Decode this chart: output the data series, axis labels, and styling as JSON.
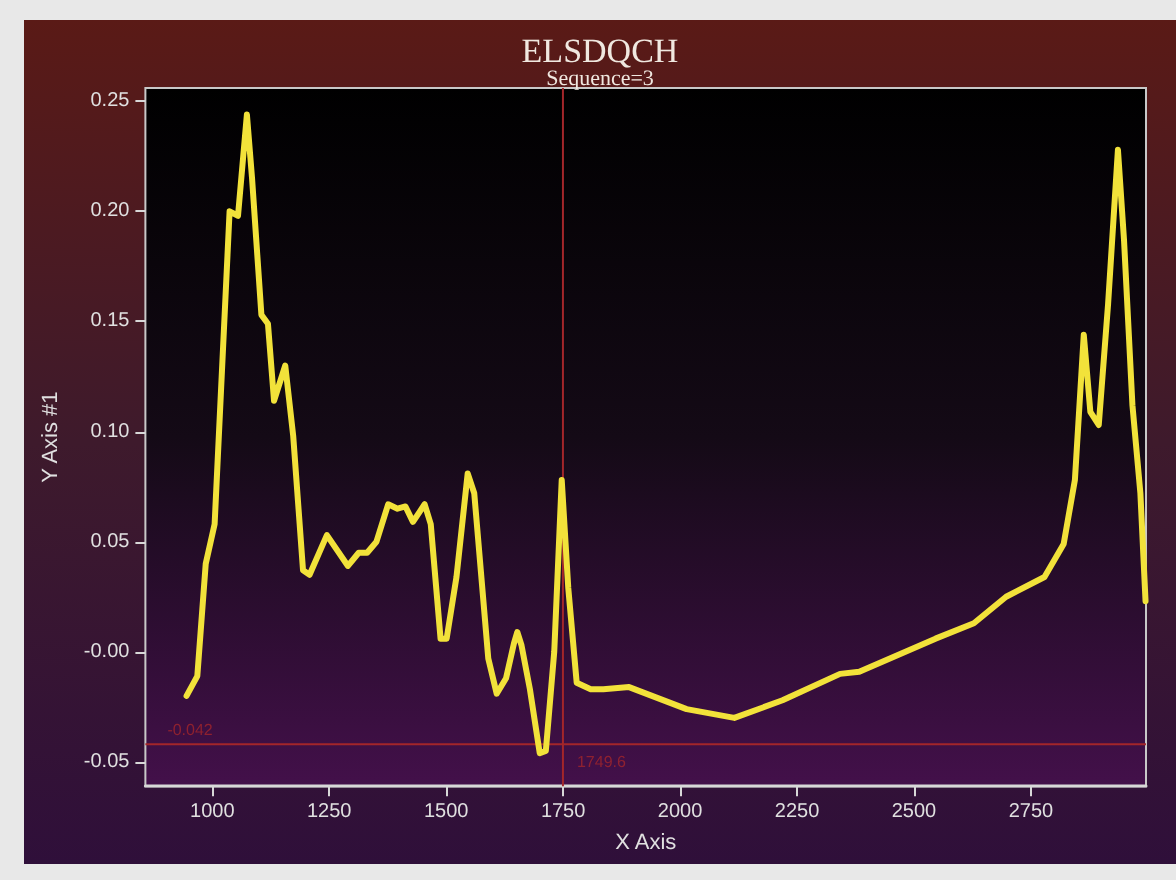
{
  "chart_data": {
    "type": "line",
    "title": "ELSDQCH",
    "subtitle": "Sequence=3",
    "xlabel": "X Axis",
    "ylabel": "Y Axis #1",
    "xlim": [
      857,
      2996
    ],
    "xticks": [
      1000,
      1250,
      1500,
      1750,
      2000,
      2250,
      2500,
      2750
    ],
    "ylim": [
      -0.061,
      0.256
    ],
    "yticks": [
      {
        "value": -0.05,
        "label": "-0.05"
      },
      {
        "value": 0,
        "label": "-0.00"
      },
      {
        "value": 0.05,
        "label": "0.05"
      },
      {
        "value": 0.1,
        "label": "0.10"
      },
      {
        "value": 0.15,
        "label": "0.15"
      },
      {
        "value": 0.2,
        "label": "0.20"
      },
      {
        "value": 0.25,
        "label": "0.25"
      }
    ],
    "grid": false,
    "marker": "none",
    "line_style": "solid",
    "ref_lines": [
      {
        "axis": "y",
        "value": -0.042,
        "label": "-0.042",
        "color": "#a3262a"
      },
      {
        "axis": "x",
        "value": 1749.6,
        "label": "1749.6",
        "color": "#a3262a"
      }
    ],
    "series": [
      {
        "color": "#f2e23a",
        "x": [
          945,
          968,
          986,
          1005,
          1037,
          1055,
          1074,
          1085,
          1105,
          1119,
          1132,
          1156,
          1173,
          1194,
          1208,
          1245,
          1290,
          1313,
          1331,
          1351,
          1376,
          1396,
          1413,
          1429,
          1454,
          1467,
          1488,
          1501,
          1522,
          1546,
          1560,
          1590,
          1608,
          1628,
          1645,
          1652,
          1661,
          1679,
          1700,
          1713,
          1731,
          1747,
          1761,
          1779,
          1809,
          1836,
          1891,
          2014,
          2116,
          2219,
          2342,
          2383,
          2546,
          2628,
          2697,
          2779,
          2820,
          2844,
          2863,
          2877,
          2895,
          2915,
          2936,
          2949,
          2967,
          2984,
          2995
        ],
        "values": [
          -0.02,
          -0.011,
          0.04,
          0.058,
          0.2,
          0.198,
          0.244,
          0.215,
          0.153,
          0.149,
          0.114,
          0.13,
          0.098,
          0.037,
          0.035,
          0.053,
          0.039,
          0.045,
          0.045,
          0.05,
          0.067,
          0.065,
          0.066,
          0.059,
          0.067,
          0.058,
          0.006,
          0.006,
          0.034,
          0.081,
          0.072,
          -0.003,
          -0.019,
          -0.012,
          0.004,
          0.009,
          0.003,
          -0.017,
          -0.046,
          -0.045,
          0.0,
          0.078,
          0.029,
          -0.014,
          -0.017,
          -0.017,
          -0.016,
          -0.026,
          -0.03,
          -0.022,
          -0.01,
          -0.009,
          0.006,
          0.013,
          0.025,
          0.034,
          0.049,
          0.078,
          0.144,
          0.109,
          0.103,
          0.158,
          0.228,
          0.187,
          0.112,
          0.072,
          0.023
        ]
      }
    ]
  }
}
